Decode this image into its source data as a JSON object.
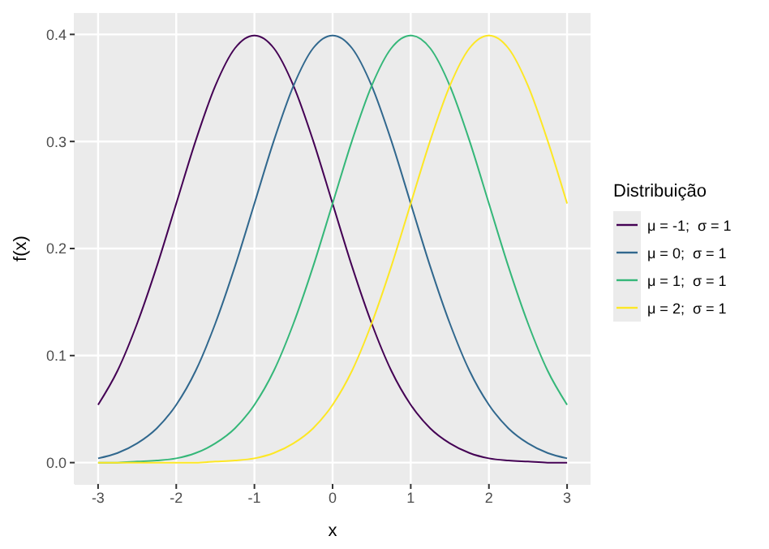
{
  "chart_data": {
    "type": "line",
    "xlabel": "x",
    "ylabel": "f(x)",
    "legend_title": "Distribuição",
    "x": [
      -3,
      -2.75,
      -2.5,
      -2.25,
      -2,
      -1.75,
      -1.5,
      -1.25,
      -1,
      -0.75,
      -0.5,
      -0.25,
      0,
      0.25,
      0.5,
      0.75,
      1,
      1.25,
      1.5,
      1.75,
      2,
      2.25,
      2.5,
      2.75,
      3
    ],
    "series": [
      {
        "name": "μ = -1;  σ = 1",
        "color": "#440154",
        "values": [
          0.054,
          0.086,
          0.13,
          0.183,
          0.242,
          0.301,
          0.352,
          0.387,
          0.399,
          0.387,
          0.352,
          0.301,
          0.242,
          0.183,
          0.13,
          0.086,
          0.054,
          0.032,
          0.018,
          0.009,
          0.004,
          0.002,
          0.001,
          0,
          0
        ]
      },
      {
        "name": "μ = 0;  σ = 1",
        "color": "#31688e",
        "values": [
          0.004,
          0.009,
          0.018,
          0.032,
          0.054,
          0.086,
          0.13,
          0.183,
          0.242,
          0.301,
          0.352,
          0.387,
          0.399,
          0.387,
          0.352,
          0.301,
          0.242,
          0.183,
          0.13,
          0.086,
          0.054,
          0.032,
          0.018,
          0.009,
          0.004
        ]
      },
      {
        "name": "μ = 1;  σ = 1",
        "color": "#35b779",
        "values": [
          0,
          0,
          0.001,
          0.002,
          0.004,
          0.009,
          0.018,
          0.032,
          0.054,
          0.086,
          0.13,
          0.183,
          0.242,
          0.301,
          0.352,
          0.387,
          0.399,
          0.387,
          0.352,
          0.301,
          0.242,
          0.183,
          0.13,
          0.086,
          0.054
        ]
      },
      {
        "name": "μ = 2;  σ = 1",
        "color": "#fde725",
        "values": [
          0,
          0,
          0,
          0,
          0,
          0,
          0.001,
          0.002,
          0.004,
          0.009,
          0.018,
          0.032,
          0.054,
          0.086,
          0.13,
          0.183,
          0.242,
          0.301,
          0.352,
          0.387,
          0.399,
          0.387,
          0.352,
          0.301,
          0.242
        ]
      }
    ],
    "xlim": [
      -3.3,
      3.3
    ],
    "xticks": [
      -3,
      -2,
      -1,
      0,
      1,
      2,
      3
    ],
    "ylim": [
      -0.02,
      0.42
    ],
    "yticks": [
      {
        "value": 0,
        "label": "0.0"
      },
      {
        "value": 0.1,
        "label": "0.1"
      },
      {
        "value": 0.2,
        "label": "0.2"
      },
      {
        "value": 0.3,
        "label": "0.3"
      },
      {
        "value": 0.4,
        "label": "0.4"
      }
    ],
    "grid": true,
    "legend": "right",
    "marker": "none",
    "line_style": "solid"
  }
}
